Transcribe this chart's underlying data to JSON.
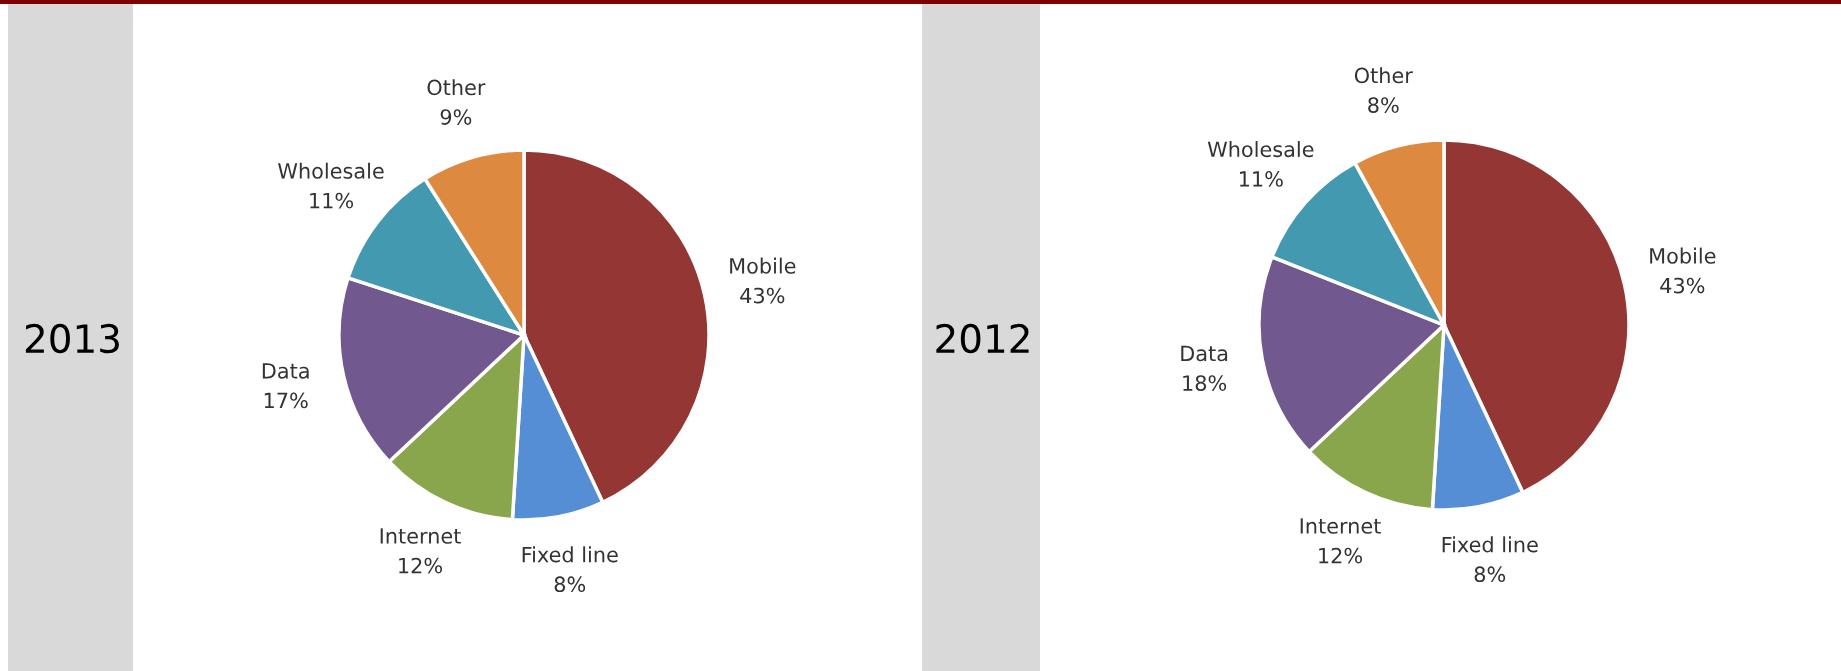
{
  "chart_data": [
    {
      "type": "pie",
      "title": "2013",
      "categories": [
        "Mobile",
        "Fixed line",
        "Internet",
        "Data",
        "Wholesale",
        "Other"
      ],
      "values": [
        43,
        8,
        12,
        17,
        11,
        9
      ],
      "value_labels": [
        "43%",
        "8%",
        "12%",
        "17%",
        "11%",
        "9%"
      ],
      "colors": [
        "#943634",
        "#558ed5",
        "#8aa64d",
        "#71588f",
        "#4299b0",
        "#dd8a40"
      ]
    },
    {
      "type": "pie",
      "title": "2012",
      "categories": [
        "Mobile",
        "Fixed line",
        "Internet",
        "Data",
        "Wholesale",
        "Other"
      ],
      "values": [
        43,
        8,
        12,
        18,
        11,
        8
      ],
      "value_labels": [
        "43%",
        "8%",
        "12%",
        "18%",
        "11%",
        "8%"
      ],
      "colors": [
        "#943634",
        "#558ed5",
        "#8aa64d",
        "#71588f",
        "#4299b0",
        "#dd8a40"
      ]
    }
  ]
}
